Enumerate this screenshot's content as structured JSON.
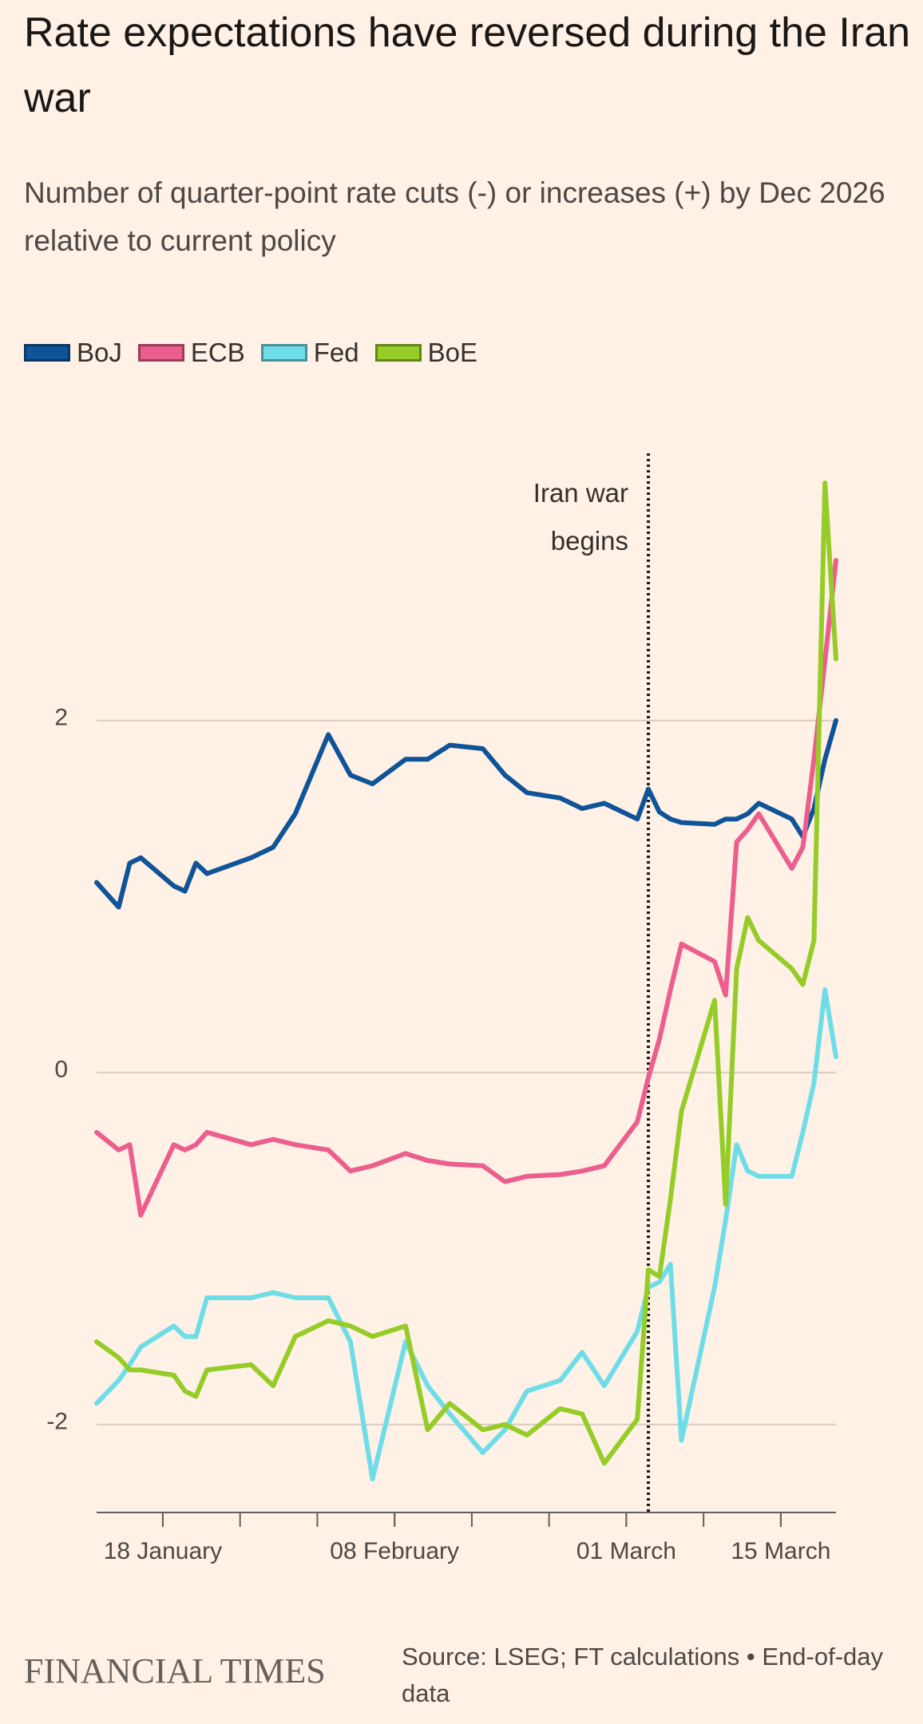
{
  "chart_data": {
    "type": "line",
    "title": "Rate expectations have reversed during the Iran war",
    "subtitle": "Number of quarter-point rate cuts (-) or increases (+) by Dec 2026 relative to current policy",
    "x": [
      "12 January",
      "14 January",
      "15 January",
      "16 January",
      "19 January",
      "20 January",
      "21 January",
      "22 January",
      "26 January",
      "28 January",
      "30 January",
      "02 February",
      "04 February",
      "06 February",
      "09 February",
      "11 February",
      "13 February",
      "16 February",
      "18 February",
      "20 February",
      "23 February",
      "25 February",
      "27 February",
      "02 March",
      "03 March",
      "04 March",
      "05 March",
      "06 March",
      "09 March",
      "10 March",
      "11 March",
      "12 March",
      "13 March",
      "16 March",
      "17 March",
      "18 March",
      "19 March",
      "20 March"
    ],
    "series": [
      {
        "name": "BoJ",
        "color": "#0f5499",
        "values": [
          1.08,
          0.94,
          1.19,
          1.22,
          1.06,
          1.03,
          1.19,
          1.13,
          1.22,
          1.28,
          1.47,
          1.92,
          1.69,
          1.64,
          1.78,
          1.78,
          1.86,
          1.84,
          1.69,
          1.59,
          1.56,
          1.5,
          1.53,
          1.44,
          1.61,
          1.48,
          1.44,
          1.42,
          1.41,
          1.44,
          1.44,
          1.47,
          1.53,
          1.44,
          1.34,
          1.5,
          1.78,
          2.0
        ]
      },
      {
        "name": "ECB",
        "color": "#eb5e8d",
        "values": [
          -0.34,
          -0.44,
          -0.41,
          -0.81,
          -0.41,
          -0.44,
          -0.41,
          -0.34,
          -0.41,
          -0.38,
          -0.41,
          -0.44,
          -0.56,
          -0.53,
          -0.46,
          -0.5,
          -0.52,
          -0.53,
          -0.62,
          -0.59,
          -0.58,
          -0.56,
          -0.53,
          -0.28,
          -0.03,
          0.19,
          0.47,
          0.73,
          0.63,
          0.44,
          1.31,
          1.38,
          1.47,
          1.16,
          1.28,
          1.78,
          2.34,
          2.91
        ]
      },
      {
        "name": "Fed",
        "color": "#6fdde8",
        "values": [
          -1.88,
          -1.75,
          -1.66,
          -1.56,
          -1.44,
          -1.5,
          -1.5,
          -1.28,
          -1.28,
          -1.25,
          -1.28,
          -1.28,
          -1.53,
          -2.31,
          -1.53,
          -1.78,
          -1.94,
          -2.16,
          -2.03,
          -1.81,
          -1.75,
          -1.59,
          -1.78,
          -1.47,
          -1.22,
          -1.19,
          -1.09,
          -2.09,
          -1.22,
          -0.84,
          -0.41,
          -0.56,
          -0.59,
          -0.59,
          -0.34,
          -0.06,
          0.47,
          0.09
        ]
      },
      {
        "name": "BoE",
        "color": "#96cc28",
        "values": [
          -1.53,
          -1.62,
          -1.69,
          -1.69,
          -1.72,
          -1.81,
          -1.84,
          -1.69,
          -1.66,
          -1.78,
          -1.5,
          -1.41,
          -1.44,
          -1.5,
          -1.44,
          -2.03,
          -1.88,
          -2.03,
          -2.0,
          -2.06,
          -1.91,
          -1.94,
          -2.22,
          -1.97,
          -1.12,
          -1.16,
          -0.72,
          -0.22,
          0.41,
          -0.75,
          0.59,
          0.88,
          0.75,
          0.59,
          0.5,
          0.75,
          3.35,
          2.35
        ]
      }
    ],
    "xlim": [
      "12 January",
      "20 March"
    ],
    "xticks": [
      "18 January",
      "08 February",
      "01 March",
      "15 March"
    ],
    "ylim": [
      -2.5,
      3.5
    ],
    "yticks": [
      -2,
      0,
      2
    ],
    "grid": true,
    "annotation": {
      "text": "Iran war begins",
      "x": "03 March"
    }
  },
  "footer": {
    "brand": "FINANCIAL TIMES",
    "source": "Source: LSEG; FT calculations • End-of-day data"
  }
}
